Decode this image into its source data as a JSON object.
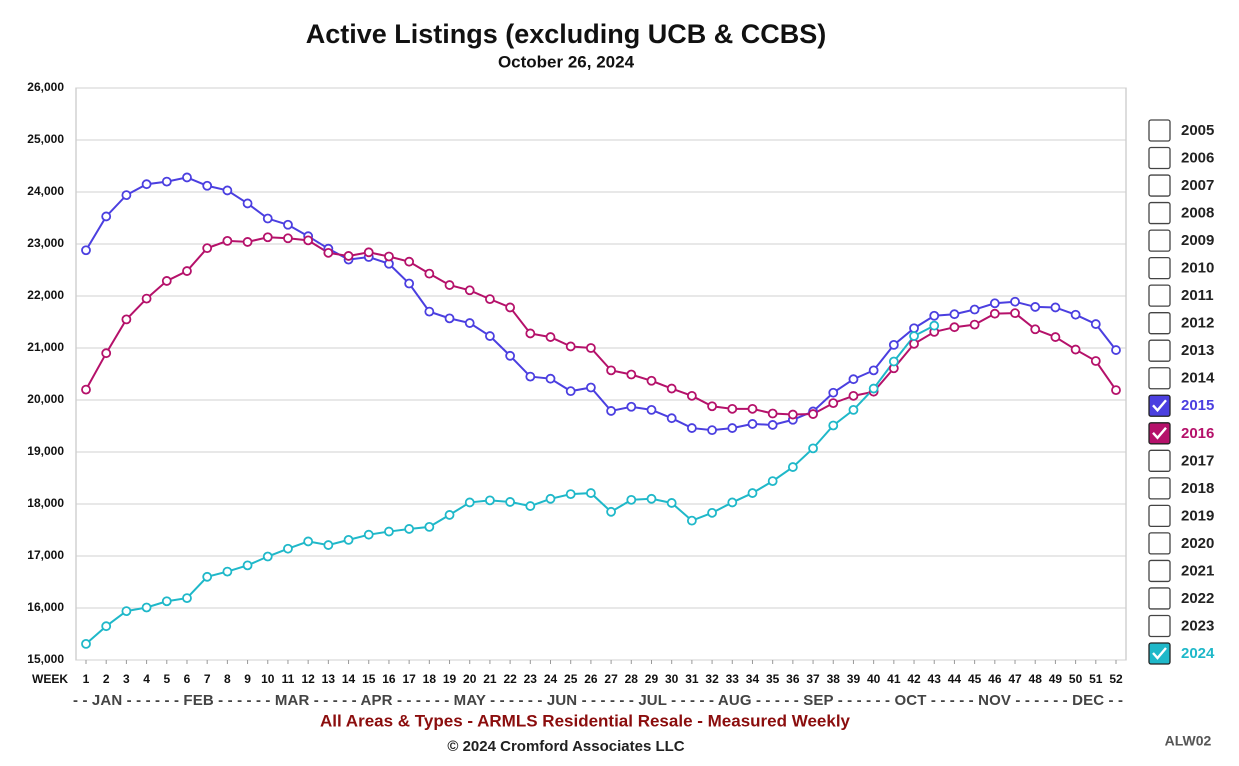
{
  "chart_data": {
    "type": "line",
    "title": "Active Listings (excluding UCB & CCBS)",
    "subtitle": "October 26, 2024",
    "x_axis_label": "WEEK",
    "month_axis": "- - JAN - - - - - - FEB - - - - - - MAR - - - - - APR - - - - - - MAY - - - - - - JUN - - - - - - JUL - - - - - AUG - - - - - SEP - - - - - - OCT - - - - - NOV - - - - - - DEC - -",
    "footer": "All Areas & Types - ARMLS Residential Resale - Measured Weekly",
    "copyright": "© 2024 Cromford Associates LLC",
    "code": "ALW02",
    "x": [
      1,
      2,
      3,
      4,
      5,
      6,
      7,
      8,
      9,
      10,
      11,
      12,
      13,
      14,
      15,
      16,
      17,
      18,
      19,
      20,
      21,
      22,
      23,
      24,
      25,
      26,
      27,
      28,
      29,
      30,
      31,
      32,
      33,
      34,
      35,
      36,
      37,
      38,
      39,
      40,
      41,
      42,
      43,
      44,
      45,
      46,
      47,
      48,
      49,
      50,
      51,
      52
    ],
    "xlim": [
      1,
      52
    ],
    "xticks": [
      1,
      2,
      3,
      4,
      5,
      6,
      7,
      8,
      9,
      10,
      11,
      12,
      13,
      14,
      15,
      16,
      17,
      18,
      19,
      20,
      21,
      22,
      23,
      24,
      25,
      26,
      27,
      28,
      29,
      30,
      31,
      32,
      33,
      34,
      35,
      36,
      37,
      38,
      39,
      40,
      41,
      42,
      43,
      44,
      45,
      46,
      47,
      48,
      49,
      50,
      51,
      52
    ],
    "ylim": [
      15000,
      26000
    ],
    "yticks": [
      {
        "value": 15000,
        "label": "15,000"
      },
      {
        "value": 16000,
        "label": "16,000"
      },
      {
        "value": 17000,
        "label": "17,000"
      },
      {
        "value": 18000,
        "label": "18,000"
      },
      {
        "value": 19000,
        "label": "19,000"
      },
      {
        "value": 20000,
        "label": "20,000"
      },
      {
        "value": 21000,
        "label": "21,000"
      },
      {
        "value": 22000,
        "label": "22,000"
      },
      {
        "value": 23000,
        "label": "23,000"
      },
      {
        "value": 24000,
        "label": "24,000"
      },
      {
        "value": 25000,
        "label": "25,000"
      },
      {
        "value": 26000,
        "label": "26,000"
      }
    ],
    "grid": true,
    "legend_position": "right",
    "unselected_years": [
      "2005",
      "2006",
      "2007",
      "2008",
      "2009",
      "2010",
      "2011",
      "2012",
      "2013",
      "2014",
      "2017",
      "2018",
      "2019",
      "2020",
      "2021",
      "2022",
      "2023"
    ],
    "series": [
      {
        "name": "2015",
        "color": "#4b3fe0",
        "values": [
          22880,
          23530,
          23940,
          24150,
          24200,
          24280,
          24120,
          24030,
          23780,
          23490,
          23370,
          23150,
          22910,
          22700,
          22750,
          22620,
          22240,
          21700,
          21570,
          21480,
          21230,
          20850,
          20450,
          20410,
          20170,
          20240,
          19790,
          19870,
          19810,
          19650,
          19460,
          19420,
          19460,
          19540,
          19520,
          19620,
          19780,
          20140,
          20400,
          20570,
          21060,
          21380,
          21620,
          21650,
          21740,
          21860,
          21890,
          21790,
          21780,
          21640,
          21460,
          20960
        ]
      },
      {
        "name": "2016",
        "color": "#b5116a",
        "values": [
          20200,
          20900,
          21550,
          21950,
          22290,
          22480,
          22920,
          23060,
          23040,
          23130,
          23110,
          23070,
          22830,
          22770,
          22840,
          22760,
          22660,
          22430,
          22210,
          22110,
          21940,
          21780,
          21280,
          21210,
          21030,
          21000,
          20570,
          20490,
          20370,
          20220,
          20080,
          19880,
          19830,
          19830,
          19740,
          19720,
          19730,
          19940,
          20080,
          20160,
          20610,
          21080,
          21310,
          21400,
          21450,
          21660,
          21670,
          21360,
          21210,
          20970,
          20750,
          20190
        ]
      },
      {
        "name": "2024",
        "color": "#1fb8c9",
        "values": [
          15310,
          15650,
          15940,
          16010,
          16130,
          16190,
          16600,
          16700,
          16820,
          16990,
          17140,
          17280,
          17210,
          17310,
          17410,
          17470,
          17520,
          17560,
          17790,
          18030,
          18070,
          18040,
          17960,
          18100,
          18190,
          18210,
          17850,
          18080,
          18100,
          18020,
          17680,
          17830,
          18030,
          18210,
          18440,
          18710,
          19070,
          19510,
          19810,
          20220,
          20740,
          21230,
          21430,
          null,
          null,
          null,
          null,
          null,
          null,
          null,
          null,
          null
        ]
      }
    ]
  }
}
